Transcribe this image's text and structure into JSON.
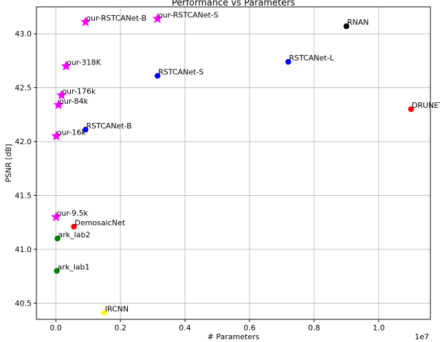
{
  "chart_data": {
    "type": "scatter",
    "title": "Performance vs  Parameters",
    "xlabel": "# Parameters",
    "ylabel": "PSNR [dB]",
    "x_scale_label": "1e7",
    "xlim": [
      -600000,
      11600000
    ],
    "ylim": [
      40.35,
      43.25
    ],
    "x_ticks": [
      0,
      2000000,
      4000000,
      6000000,
      8000000,
      10000000
    ],
    "x_tick_labels": [
      "0.0",
      "0.2",
      "0.4",
      "0.6",
      "0.8",
      "1.0"
    ],
    "y_ticks": [
      40.5,
      41.0,
      41.5,
      42.0,
      42.5,
      43.0
    ],
    "y_tick_labels": [
      "40.5",
      "41.0",
      "41.5",
      "42.0",
      "42.5",
      "43.0"
    ],
    "grid": true,
    "points": [
      {
        "label": "our-RSTCANet-B",
        "x": 920000,
        "y": 43.11,
        "marker": "star",
        "color": "#ff00ff"
      },
      {
        "label": "our-RSTCANet-S",
        "x": 3150000,
        "y": 43.14,
        "marker": "star",
        "color": "#ff00ff"
      },
      {
        "label": "our-318K",
        "x": 318000,
        "y": 42.7,
        "marker": "star",
        "color": "#ff00ff"
      },
      {
        "label": "our-176k",
        "x": 176000,
        "y": 42.43,
        "marker": "star",
        "color": "#ff00ff"
      },
      {
        "label": "our-84k",
        "x": 84000,
        "y": 42.34,
        "marker": "star",
        "color": "#ff00ff"
      },
      {
        "label": "our-16k",
        "x": 16000,
        "y": 42.05,
        "marker": "star",
        "color": "#ff00ff"
      },
      {
        "label": "our-9.5k",
        "x": 9500,
        "y": 41.3,
        "marker": "star",
        "color": "#ff00ff"
      },
      {
        "label": "RNAN",
        "x": 9000000,
        "y": 43.07,
        "marker": "circle",
        "color": "#000000"
      },
      {
        "label": "RSTCANet-L",
        "x": 7200000,
        "y": 42.74,
        "marker": "circle",
        "color": "#0000ff"
      },
      {
        "label": "RSTCANet-S",
        "x": 3150000,
        "y": 42.61,
        "marker": "circle",
        "color": "#0000ff"
      },
      {
        "label": "RSTCANet-B",
        "x": 920000,
        "y": 42.11,
        "marker": "circle",
        "color": "#0000ff"
      },
      {
        "label": "DRUNET",
        "x": 11000000,
        "y": 42.3,
        "marker": "circle",
        "color": "#ff0000"
      },
      {
        "label": "DemosaicNet",
        "x": 560000,
        "y": 41.21,
        "marker": "circle",
        "color": "#ff0000"
      },
      {
        "label": "ark_lab2",
        "x": 50000,
        "y": 41.1,
        "marker": "circle",
        "color": "#008000"
      },
      {
        "label": "ark_lab1",
        "x": 30000,
        "y": 40.8,
        "marker": "circle",
        "color": "#008000"
      },
      {
        "label": "IRCNN",
        "x": 1500000,
        "y": 40.41,
        "marker": "circle",
        "color": "#ffff00"
      }
    ]
  }
}
